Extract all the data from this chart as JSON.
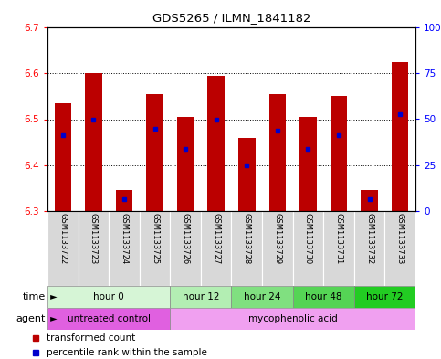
{
  "title": "GDS5265 / ILMN_1841182",
  "samples": [
    "GSM1133722",
    "GSM1133723",
    "GSM1133724",
    "GSM1133725",
    "GSM1133726",
    "GSM1133727",
    "GSM1133728",
    "GSM1133729",
    "GSM1133730",
    "GSM1133731",
    "GSM1133732",
    "GSM1133733"
  ],
  "bar_tops": [
    6.535,
    6.6,
    6.345,
    6.555,
    6.505,
    6.595,
    6.46,
    6.555,
    6.505,
    6.55,
    6.345,
    6.625
  ],
  "bar_bottoms": [
    6.3,
    6.3,
    6.3,
    6.3,
    6.3,
    6.3,
    6.3,
    6.3,
    6.3,
    6.3,
    6.3,
    6.3
  ],
  "percentile_values": [
    6.465,
    6.5,
    6.325,
    6.48,
    6.435,
    6.5,
    6.4,
    6.475,
    6.435,
    6.465,
    6.325,
    6.51
  ],
  "ylim": [
    6.3,
    6.7
  ],
  "yticks_left": [
    6.3,
    6.4,
    6.5,
    6.6,
    6.7
  ],
  "yticks_right": [
    0,
    25,
    50,
    75,
    100
  ],
  "bar_color": "#BB0000",
  "percentile_color": "#0000CC",
  "bg_color": "#ffffff",
  "time_groups": [
    {
      "label": "hour 0",
      "start": 0,
      "end": 4,
      "color": "#d6f5d6"
    },
    {
      "label": "hour 12",
      "start": 4,
      "end": 6,
      "color": "#b3eeb3"
    },
    {
      "label": "hour 24",
      "start": 6,
      "end": 8,
      "color": "#80e080"
    },
    {
      "label": "hour 48",
      "start": 8,
      "end": 10,
      "color": "#55d455"
    },
    {
      "label": "hour 72",
      "start": 10,
      "end": 12,
      "color": "#22cc22"
    }
  ],
  "agent_groups": [
    {
      "label": "untreated control",
      "start": 0,
      "end": 4,
      "color": "#e060e0"
    },
    {
      "label": "mycophenolic acid",
      "start": 4,
      "end": 12,
      "color": "#f0a0f0"
    }
  ],
  "legend_red": "transformed count",
  "legend_blue": "percentile rank within the sample",
  "sample_bg": "#c8c8c8"
}
